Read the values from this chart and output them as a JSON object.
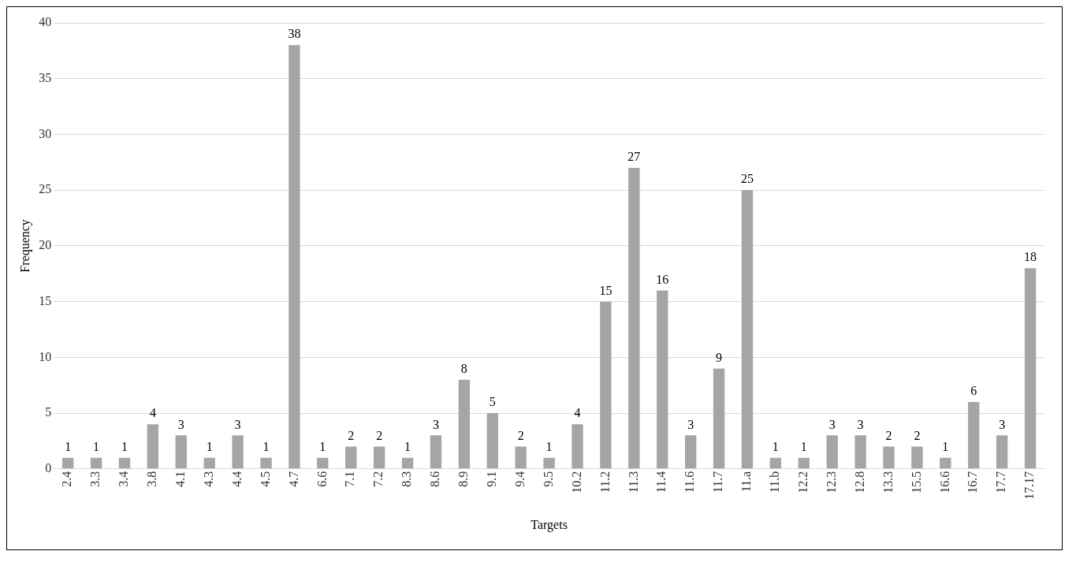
{
  "chart_data": {
    "type": "bar",
    "xlabel": "Targets",
    "ylabel": "Frequency",
    "categories": [
      "2.4",
      "3.3",
      "3.4",
      "3.8",
      "4.1",
      "4.3",
      "4.4",
      "4.5",
      "4.7",
      "6.6",
      "7.1",
      "7.2",
      "8.3",
      "8.6",
      "8.9",
      "9.1",
      "9.4",
      "9.5",
      "10.2",
      "11.2",
      "11.3",
      "11.4",
      "11.6",
      "11.7",
      "11.a",
      "11.b",
      "12.2",
      "12.3",
      "12.8",
      "13.3",
      "15.5",
      "16.6",
      "16.7",
      "17.7",
      "17.17"
    ],
    "values": [
      1,
      1,
      1,
      4,
      3,
      1,
      3,
      1,
      38,
      1,
      2,
      2,
      1,
      3,
      8,
      5,
      2,
      1,
      4,
      15,
      27,
      16,
      3,
      9,
      25,
      1,
      1,
      3,
      3,
      2,
      2,
      1,
      6,
      3,
      18
    ],
    "color": "#a5a5a5",
    "ylim": [
      0,
      40
    ],
    "yticks": [
      0,
      5,
      10,
      15,
      20,
      25,
      30,
      35,
      40
    ],
    "grid": "y",
    "data_labels": true,
    "legend": false
  }
}
